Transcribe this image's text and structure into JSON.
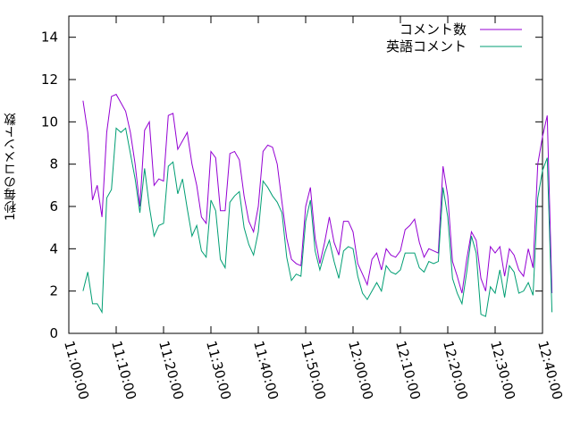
{
  "chart_data": {
    "type": "line",
    "title": "",
    "xlabel": "",
    "ylabel": "1秒毎のコメント数",
    "ylim": [
      0,
      15
    ],
    "yticks": [
      "0",
      "2",
      "4",
      "6",
      "8",
      "10",
      "12",
      "14"
    ],
    "xlim": [
      "11:00:00",
      "12:40:00"
    ],
    "xticks": [
      "11:00:00",
      "11:10:00",
      "11:20:00",
      "11:30:00",
      "11:40:00",
      "11:50:00",
      "12:00:00",
      "12:10:00",
      "12:20:00",
      "12:30:00",
      "12:40:00"
    ],
    "legend_position": "top-right",
    "grid": false,
    "series": [
      {
        "name": "コメント数",
        "color": "#9400d3",
        "points": [
          [
            "11:03:00",
            11.0
          ],
          [
            "11:04:00",
            9.5
          ],
          [
            "11:05:00",
            6.3
          ],
          [
            "11:06:00",
            7.0
          ],
          [
            "11:07:00",
            5.5
          ],
          [
            "11:08:00",
            9.5
          ],
          [
            "11:09:00",
            11.2
          ],
          [
            "11:10:00",
            11.3
          ],
          [
            "11:11:00",
            10.9
          ],
          [
            "11:12:00",
            10.5
          ],
          [
            "11:13:00",
            9.5
          ],
          [
            "11:14:00",
            8.0
          ],
          [
            "11:15:00",
            6.0
          ],
          [
            "11:16:00",
            9.6
          ],
          [
            "11:17:00",
            10.0
          ],
          [
            "11:18:00",
            7.0
          ],
          [
            "11:19:00",
            7.3
          ],
          [
            "11:20:00",
            7.2
          ],
          [
            "11:21:00",
            10.3
          ],
          [
            "11:22:00",
            10.4
          ],
          [
            "11:23:00",
            8.7
          ],
          [
            "11:24:00",
            9.1
          ],
          [
            "11:25:00",
            9.5
          ],
          [
            "11:26:00",
            8.0
          ],
          [
            "11:27:00",
            7.0
          ],
          [
            "11:28:00",
            5.5
          ],
          [
            "11:29:00",
            5.2
          ],
          [
            "11:30:00",
            8.6
          ],
          [
            "11:31:00",
            8.3
          ],
          [
            "11:32:00",
            5.8
          ],
          [
            "11:33:00",
            5.8
          ],
          [
            "11:34:00",
            8.5
          ],
          [
            "11:35:00",
            8.6
          ],
          [
            "11:36:00",
            8.2
          ],
          [
            "11:37:00",
            6.5
          ],
          [
            "11:38:00",
            5.3
          ],
          [
            "11:39:00",
            4.8
          ],
          [
            "11:40:00",
            6.0
          ],
          [
            "11:41:00",
            8.6
          ],
          [
            "11:42:00",
            8.9
          ],
          [
            "11:43:00",
            8.8
          ],
          [
            "11:44:00",
            8.0
          ],
          [
            "11:45:00",
            6.2
          ],
          [
            "11:46:00",
            4.5
          ],
          [
            "11:47:00",
            3.5
          ],
          [
            "11:48:00",
            3.3
          ],
          [
            "11:49:00",
            3.2
          ],
          [
            "11:50:00",
            6.0
          ],
          [
            "11:51:00",
            6.9
          ],
          [
            "11:52:00",
            4.5
          ],
          [
            "11:53:00",
            3.3
          ],
          [
            "11:54:00",
            4.3
          ],
          [
            "11:55:00",
            5.5
          ],
          [
            "11:56:00",
            4.3
          ],
          [
            "11:57:00",
            3.7
          ],
          [
            "11:58:00",
            5.3
          ],
          [
            "11:59:00",
            5.3
          ],
          [
            "12:00:00",
            4.8
          ],
          [
            "12:01:00",
            3.3
          ],
          [
            "12:02:00",
            2.8
          ],
          [
            "12:03:00",
            2.3
          ],
          [
            "12:04:00",
            3.5
          ],
          [
            "12:05:00",
            3.8
          ],
          [
            "12:06:00",
            3.0
          ],
          [
            "12:07:00",
            4.0
          ],
          [
            "12:08:00",
            3.7
          ],
          [
            "12:09:00",
            3.6
          ],
          [
            "12:10:00",
            3.9
          ],
          [
            "12:11:00",
            4.9
          ],
          [
            "12:12:00",
            5.1
          ],
          [
            "12:13:00",
            5.4
          ],
          [
            "12:14:00",
            4.3
          ],
          [
            "12:15:00",
            3.6
          ],
          [
            "12:16:00",
            4.0
          ],
          [
            "12:17:00",
            3.9
          ],
          [
            "12:18:00",
            3.8
          ],
          [
            "12:19:00",
            7.9
          ],
          [
            "12:20:00",
            6.5
          ],
          [
            "12:21:00",
            3.4
          ],
          [
            "12:22:00",
            2.7
          ],
          [
            "12:23:00",
            1.9
          ],
          [
            "12:24:00",
            3.5
          ],
          [
            "12:25:00",
            4.8
          ],
          [
            "12:26:00",
            4.4
          ],
          [
            "12:27:00",
            2.6
          ],
          [
            "12:28:00",
            2.0
          ],
          [
            "12:29:00",
            4.1
          ],
          [
            "12:30:00",
            3.8
          ],
          [
            "12:31:00",
            4.1
          ],
          [
            "12:32:00",
            2.7
          ],
          [
            "12:33:00",
            4.0
          ],
          [
            "12:34:00",
            3.7
          ],
          [
            "12:35:00",
            3.0
          ],
          [
            "12:36:00",
            2.7
          ],
          [
            "12:37:00",
            4.0
          ],
          [
            "12:38:00",
            3.1
          ],
          [
            "12:39:00",
            8.0
          ],
          [
            "12:40:00",
            9.3
          ],
          [
            "12:41:00",
            10.3
          ],
          [
            "12:42:00",
            1.9
          ]
        ]
      },
      {
        "name": "英語コメント",
        "color": "#009e73",
        "points": [
          [
            "11:03:00",
            2.0
          ],
          [
            "11:04:00",
            2.9
          ],
          [
            "11:05:00",
            1.4
          ],
          [
            "11:06:00",
            1.4
          ],
          [
            "11:07:00",
            1.0
          ],
          [
            "11:08:00",
            6.4
          ],
          [
            "11:09:00",
            6.8
          ],
          [
            "11:10:00",
            9.7
          ],
          [
            "11:11:00",
            9.5
          ],
          [
            "11:12:00",
            9.7
          ],
          [
            "11:13:00",
            8.5
          ],
          [
            "11:14:00",
            7.3
          ],
          [
            "11:15:00",
            5.7
          ],
          [
            "11:16:00",
            7.8
          ],
          [
            "11:17:00",
            6.0
          ],
          [
            "11:18:00",
            4.6
          ],
          [
            "11:19:00",
            5.1
          ],
          [
            "11:20:00",
            5.2
          ],
          [
            "11:21:00",
            7.9
          ],
          [
            "11:22:00",
            8.1
          ],
          [
            "11:23:00",
            6.6
          ],
          [
            "11:24:00",
            7.3
          ],
          [
            "11:25:00",
            5.9
          ],
          [
            "11:26:00",
            4.6
          ],
          [
            "11:27:00",
            5.1
          ],
          [
            "11:28:00",
            3.9
          ],
          [
            "11:29:00",
            3.6
          ],
          [
            "11:30:00",
            6.3
          ],
          [
            "11:31:00",
            5.8
          ],
          [
            "11:32:00",
            3.5
          ],
          [
            "11:33:00",
            3.1
          ],
          [
            "11:34:00",
            6.2
          ],
          [
            "11:35:00",
            6.5
          ],
          [
            "11:36:00",
            6.7
          ],
          [
            "11:37:00",
            5.0
          ],
          [
            "11:38:00",
            4.2
          ],
          [
            "11:39:00",
            3.7
          ],
          [
            "11:40:00",
            4.8
          ],
          [
            "11:41:00",
            7.2
          ],
          [
            "11:42:00",
            6.9
          ],
          [
            "11:43:00",
            6.5
          ],
          [
            "11:44:00",
            6.2
          ],
          [
            "11:45:00",
            5.7
          ],
          [
            "11:46:00",
            3.6
          ],
          [
            "11:47:00",
            2.5
          ],
          [
            "11:48:00",
            2.8
          ],
          [
            "11:49:00",
            2.7
          ],
          [
            "11:50:00",
            5.3
          ],
          [
            "11:51:00",
            6.3
          ],
          [
            "11:52:00",
            3.9
          ],
          [
            "11:53:00",
            3.0
          ],
          [
            "11:54:00",
            3.8
          ],
          [
            "11:55:00",
            4.4
          ],
          [
            "11:56:00",
            3.4
          ],
          [
            "11:57:00",
            2.6
          ],
          [
            "11:58:00",
            3.9
          ],
          [
            "11:59:00",
            4.1
          ],
          [
            "12:00:00",
            4.0
          ],
          [
            "12:01:00",
            2.7
          ],
          [
            "12:02:00",
            1.9
          ],
          [
            "12:03:00",
            1.6
          ],
          [
            "12:04:00",
            2.0
          ],
          [
            "12:05:00",
            2.4
          ],
          [
            "12:06:00",
            2.0
          ],
          [
            "12:07:00",
            3.2
          ],
          [
            "12:08:00",
            2.9
          ],
          [
            "12:09:00",
            2.8
          ],
          [
            "12:10:00",
            3.0
          ],
          [
            "12:11:00",
            3.8
          ],
          [
            "12:12:00",
            3.8
          ],
          [
            "12:13:00",
            3.8
          ],
          [
            "12:14:00",
            3.1
          ],
          [
            "12:15:00",
            2.9
          ],
          [
            "12:16:00",
            3.4
          ],
          [
            "12:17:00",
            3.3
          ],
          [
            "12:18:00",
            3.4
          ],
          [
            "12:19:00",
            6.9
          ],
          [
            "12:20:00",
            5.5
          ],
          [
            "12:21:00",
            2.6
          ],
          [
            "12:22:00",
            1.9
          ],
          [
            "12:23:00",
            1.4
          ],
          [
            "12:24:00",
            2.9
          ],
          [
            "12:25:00",
            4.6
          ],
          [
            "12:26:00",
            3.8
          ],
          [
            "12:27:00",
            0.9
          ],
          [
            "12:28:00",
            0.8
          ],
          [
            "12:29:00",
            2.2
          ],
          [
            "12:30:00",
            1.9
          ],
          [
            "12:31:00",
            3.0
          ],
          [
            "12:32:00",
            1.7
          ],
          [
            "12:33:00",
            3.2
          ],
          [
            "12:34:00",
            2.9
          ],
          [
            "12:35:00",
            1.9
          ],
          [
            "12:36:00",
            2.0
          ],
          [
            "12:37:00",
            2.4
          ],
          [
            "12:38:00",
            1.8
          ],
          [
            "12:39:00",
            6.4
          ],
          [
            "12:40:00",
            7.7
          ],
          [
            "12:41:00",
            8.3
          ],
          [
            "12:42:00",
            1.0
          ]
        ]
      }
    ]
  }
}
